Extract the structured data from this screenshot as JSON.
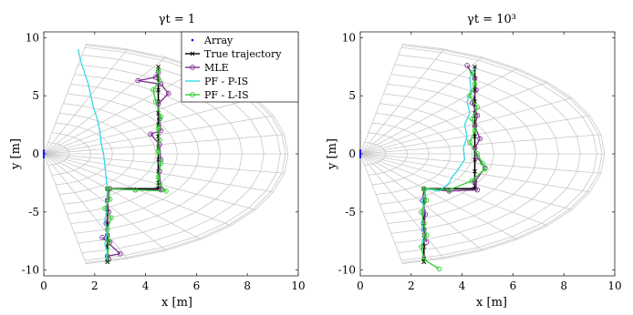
{
  "chart_data": [
    {
      "type": "line",
      "title": "γt = 1",
      "xlabel": "x [m]",
      "ylabel": "y [m]",
      "xlim": [
        0,
        10
      ],
      "ylim": [
        -10.5,
        10.5
      ],
      "xticks": [
        0,
        2,
        4,
        6,
        8,
        10
      ],
      "yticks": [
        -10,
        -5,
        0,
        5,
        10
      ],
      "grid": "polar range-angle grid",
      "legend_placement": "top-right",
      "legend": [
        "Array",
        "True trajectory",
        "MLE",
        "PF - P-IS",
        "PF - L-IS"
      ],
      "series": [
        {
          "name": "Array",
          "color": "#0000ff",
          "x": [
            0,
            0,
            0,
            0,
            0
          ],
          "y": [
            -0.3,
            -0.15,
            0,
            0.15,
            0.3
          ]
        },
        {
          "name": "True trajectory",
          "color": "#000000",
          "x": [
            4.5,
            4.5,
            4.5,
            4.5,
            4.5,
            4.5,
            4.5,
            4.5,
            4.5,
            4.5,
            4.5,
            4.5,
            4.5,
            2.5,
            2.5,
            2.5,
            2.5,
            2.5,
            2.5,
            2.5,
            2.5,
            2.5,
            2.5
          ],
          "y": [
            7.5,
            6.5,
            5.5,
            4.5,
            3.5,
            2.5,
            1.5,
            0.5,
            -0.5,
            -1.5,
            -2.5,
            -3.0,
            -3.0,
            -3.0,
            -3.0,
            -4.0,
            -5.0,
            -6.0,
            -7.0,
            -8.0,
            -9.0,
            -9.3,
            -9.3
          ]
        },
        {
          "name": "MLE",
          "color": "#7e2f8e",
          "x": [
            4.5,
            4.4,
            3.7,
            4.6,
            4.9,
            4.5,
            4.55,
            4.6,
            4.2,
            4.55,
            4.6,
            4.55,
            4.6,
            3.6,
            2.6,
            2.5,
            2.55,
            2.45,
            2.5,
            2.6,
            2.3,
            3.0,
            2.5,
            2.55
          ],
          "y": [
            7.0,
            6.6,
            6.3,
            6.0,
            5.2,
            4.3,
            3.0,
            2.0,
            1.7,
            0.8,
            -0.5,
            -1.5,
            -3.1,
            -3.1,
            -3.0,
            -4.0,
            -5.0,
            -6.0,
            -7.0,
            -7.6,
            -7.2,
            -8.6,
            -8.8,
            -9.1
          ]
        },
        {
          "name": "PF - P-IS",
          "color": "#33d8e8",
          "x": [
            1.35,
            1.45,
            1.6,
            1.75,
            1.85,
            1.95,
            2.1,
            2.2,
            2.25,
            2.35,
            2.4,
            2.45,
            2.5,
            2.5,
            2.45,
            2.4,
            2.5,
            2.45,
            2.4,
            2.5,
            2.45,
            2.5
          ],
          "y": [
            9.0,
            8.0,
            7.0,
            6.0,
            5.0,
            4.0,
            3.0,
            2.0,
            1.0,
            0.0,
            -1.0,
            -2.0,
            -3.0,
            -4.0,
            -5.0,
            -5.8,
            -6.5,
            -7.2,
            -7.8,
            -8.4,
            -8.8,
            -9.2
          ]
        },
        {
          "name": "PF - L-IS",
          "color": "#33cc33",
          "x": [
            4.5,
            4.55,
            4.3,
            4.4,
            4.6,
            4.5,
            4.55,
            4.5,
            4.6,
            4.5,
            4.55,
            4.8,
            3.6,
            2.5,
            2.6,
            2.4,
            2.65,
            2.5,
            2.55,
            2.5
          ],
          "y": [
            7.2,
            6.3,
            5.5,
            4.5,
            3.2,
            2.2,
            1.2,
            0.2,
            -0.8,
            -2.0,
            -2.6,
            -3.2,
            -3.1,
            -3.0,
            -3.9,
            -4.7,
            -5.5,
            -6.5,
            -7.5,
            -9.2
          ]
        }
      ]
    },
    {
      "type": "line",
      "title": "γt = 10³",
      "xlabel": "x [m]",
      "ylabel": "y [m]",
      "xlim": [
        0,
        10
      ],
      "ylim": [
        -10.5,
        10.5
      ],
      "xticks": [
        0,
        2,
        4,
        6,
        8,
        10
      ],
      "yticks": [
        -10,
        -5,
        0,
        5,
        10
      ],
      "grid": "polar range-angle grid",
      "series": [
        {
          "name": "Array",
          "color": "#0000ff",
          "x": [
            0,
            0,
            0,
            0,
            0
          ],
          "y": [
            -0.3,
            -0.15,
            0,
            0.15,
            0.3
          ]
        },
        {
          "name": "True trajectory",
          "color": "#000000",
          "x": [
            4.5,
            4.5,
            4.5,
            4.5,
            4.5,
            4.5,
            4.5,
            4.5,
            4.5,
            4.5,
            4.5,
            4.5,
            4.5,
            2.5,
            2.5,
            2.5,
            2.5,
            2.5,
            2.5,
            2.5,
            2.5,
            2.5,
            2.5
          ],
          "y": [
            7.5,
            6.5,
            5.5,
            4.5,
            3.5,
            2.5,
            1.5,
            0.5,
            -0.5,
            -1.5,
            -2.5,
            -3.0,
            -3.0,
            -3.0,
            -3.0,
            -4.0,
            -5.0,
            -6.0,
            -7.0,
            -8.0,
            -9.0,
            -9.3,
            -9.3
          ]
        },
        {
          "name": "MLE",
          "color": "#7e2f8e",
          "x": [
            4.2,
            4.5,
            4.55,
            4.4,
            4.6,
            4.5,
            4.7,
            4.5,
            4.6,
            4.9,
            4.5,
            4.6,
            3.5,
            2.5,
            2.45,
            2.55,
            2.5,
            2.6
          ],
          "y": [
            7.6,
            6.5,
            5.5,
            4.4,
            3.3,
            2.4,
            1.3,
            0.5,
            -0.3,
            -1.2,
            -2.4,
            -3.1,
            -3.2,
            -3.0,
            -4.0,
            -5.2,
            -6.5,
            -7.6
          ]
        },
        {
          "name": "PF - P-IS",
          "color": "#33d8e8",
          "x": [
            4.5,
            4.3,
            4.35,
            4.2,
            4.3,
            4.1,
            4.2,
            4.05,
            4.1,
            3.8,
            3.6,
            3.5,
            3.1,
            2.6,
            2.45,
            2.5,
            2.4,
            2.5,
            2.4,
            2.5
          ],
          "y": [
            7.4,
            6.5,
            5.5,
            4.5,
            3.5,
            2.5,
            1.5,
            0.5,
            -0.5,
            -1.5,
            -2.0,
            -2.5,
            -3.2,
            -3.0,
            -4.0,
            -5.0,
            -6.0,
            -7.0,
            -8.0,
            -9.0
          ]
        },
        {
          "name": "PF - L-IS",
          "color": "#33cc33",
          "x": [
            4.4,
            4.5,
            4.3,
            4.6,
            4.4,
            4.5,
            4.3,
            4.6,
            4.8,
            4.9,
            4.4,
            3.5,
            2.5,
            2.6,
            2.4,
            2.5,
            2.6,
            2.4,
            2.5,
            3.1
          ],
          "y": [
            7.0,
            6.0,
            5.0,
            4.0,
            3.0,
            2.0,
            1.0,
            0.0,
            -0.8,
            -1.3,
            -2.3,
            -3.1,
            -3.0,
            -4.0,
            -5.0,
            -6.0,
            -7.0,
            -8.0,
            -9.1,
            -9.9
          ]
        }
      ]
    }
  ]
}
